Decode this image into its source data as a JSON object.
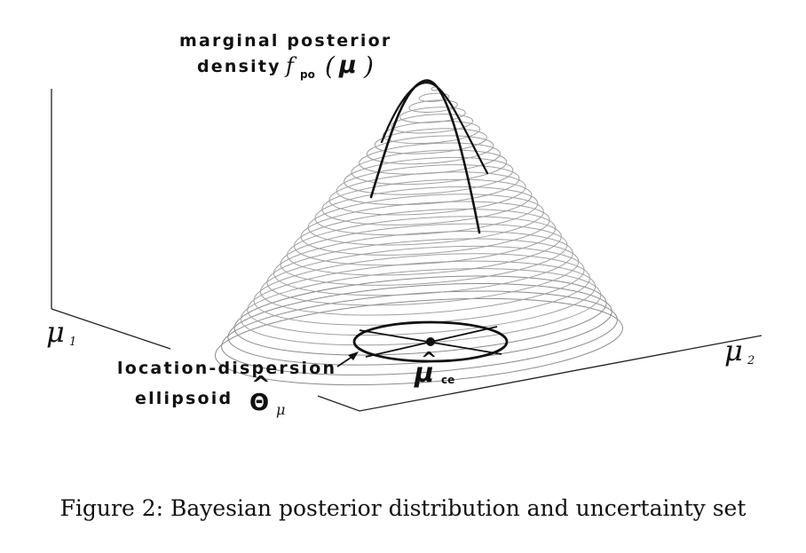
{
  "labels": {
    "posterior_line1": "marginal posterior",
    "posterior_line2": "density",
    "f_symbol": "f",
    "f_subscript": "po",
    "paren_open": "(",
    "mu_bold": "μ",
    "paren_close": ")",
    "axis_mu1": "μ",
    "axis_mu1_sub": "1",
    "axis_mu2": "μ",
    "axis_mu2_sub": "2",
    "ellipsoid_line1": "location-dispersion",
    "ellipsoid_line2": "ellipsoid",
    "theta_symbol": "Θ",
    "theta_hat": "^",
    "theta_subscript": "μ",
    "mu_ce": "μ",
    "mu_ce_hat": "^",
    "mu_ce_subscript": "ce"
  },
  "caption": "Figure 2: Bayesian posterior distribution and uncertainty set",
  "colors": {
    "contour": "#8a8a8a",
    "axis": "#222222",
    "ellipse": "#111111",
    "text": "#111111"
  }
}
